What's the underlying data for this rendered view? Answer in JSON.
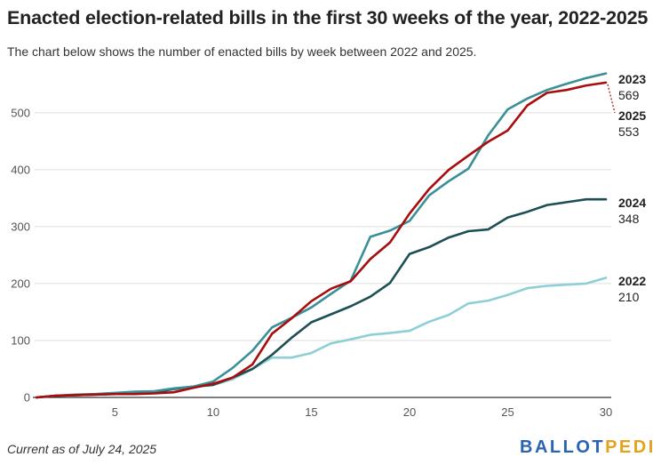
{
  "header": {
    "title": "Enacted election-related bills in the first 30 weeks of the year, 2022-2025",
    "subtitle": "The chart below shows the number of enacted bills by week between 2022 and 2025."
  },
  "footer": {
    "note": "Current as of July 24, 2025",
    "logo_part1": "BALLOT",
    "logo_part2": "PEDIA"
  },
  "colors": {
    "s2022": "#8ecfd6",
    "s2023": "#3b8f97",
    "s2024": "#1d4f55",
    "s2025": "#a80c0c",
    "grid": "#dddddd",
    "axis": "#333333",
    "logo_blue": "#2b63b4",
    "logo_gold": "#e2a31d"
  },
  "chart_data": {
    "type": "line",
    "title": "Enacted election-related bills in the first 30 weeks of the year, 2022-2025",
    "xlabel": "",
    "ylabel": "",
    "xlim": [
      1,
      30
    ],
    "ylim": [
      0,
      570
    ],
    "x_ticks": [
      5,
      10,
      15,
      20,
      25,
      30
    ],
    "y_ticks": [
      0,
      100,
      200,
      300,
      400,
      500
    ],
    "y_tick_labels": [
      "0",
      "100",
      "200",
      "300",
      "400",
      "500"
    ],
    "grid": true,
    "x": [
      1,
      2,
      3,
      4,
      5,
      6,
      7,
      8,
      9,
      10,
      11,
      12,
      13,
      14,
      15,
      16,
      17,
      18,
      19,
      20,
      21,
      22,
      23,
      24,
      25,
      26,
      27,
      28,
      29,
      30
    ],
    "series": [
      {
        "name": "2022",
        "color_key": "s2022",
        "end_label": "210",
        "values": [
          0,
          3,
          4,
          5,
          7,
          8,
          10,
          14,
          18,
          22,
          32,
          50,
          70,
          70,
          78,
          95,
          102,
          110,
          113,
          117,
          133,
          145,
          165,
          170,
          180,
          192,
          196,
          198,
          200,
          210
        ]
      },
      {
        "name": "2023",
        "color_key": "s2023",
        "end_label": "569",
        "values": [
          0,
          3,
          5,
          6,
          8,
          10,
          11,
          16,
          19,
          28,
          52,
          82,
          123,
          140,
          158,
          182,
          205,
          282,
          293,
          310,
          355,
          380,
          402,
          460,
          506,
          525,
          540,
          551,
          561,
          569
        ]
      },
      {
        "name": "2024",
        "color_key": "s2024",
        "end_label": "348",
        "values": [
          0,
          3,
          4,
          5,
          6,
          7,
          8,
          15,
          19,
          22,
          35,
          50,
          75,
          105,
          132,
          146,
          160,
          177,
          201,
          252,
          264,
          281,
          292,
          295,
          316,
          326,
          338,
          343,
          348,
          348
        ]
      },
      {
        "name": "2025",
        "color_key": "s2025",
        "end_label": "553",
        "values": [
          0,
          3,
          4,
          5,
          6,
          6,
          7,
          9,
          17,
          24,
          35,
          58,
          112,
          139,
          169,
          191,
          204,
          243,
          272,
          323,
          366,
          400,
          425,
          449,
          469,
          513,
          535,
          540,
          548,
          553
        ]
      }
    ]
  }
}
